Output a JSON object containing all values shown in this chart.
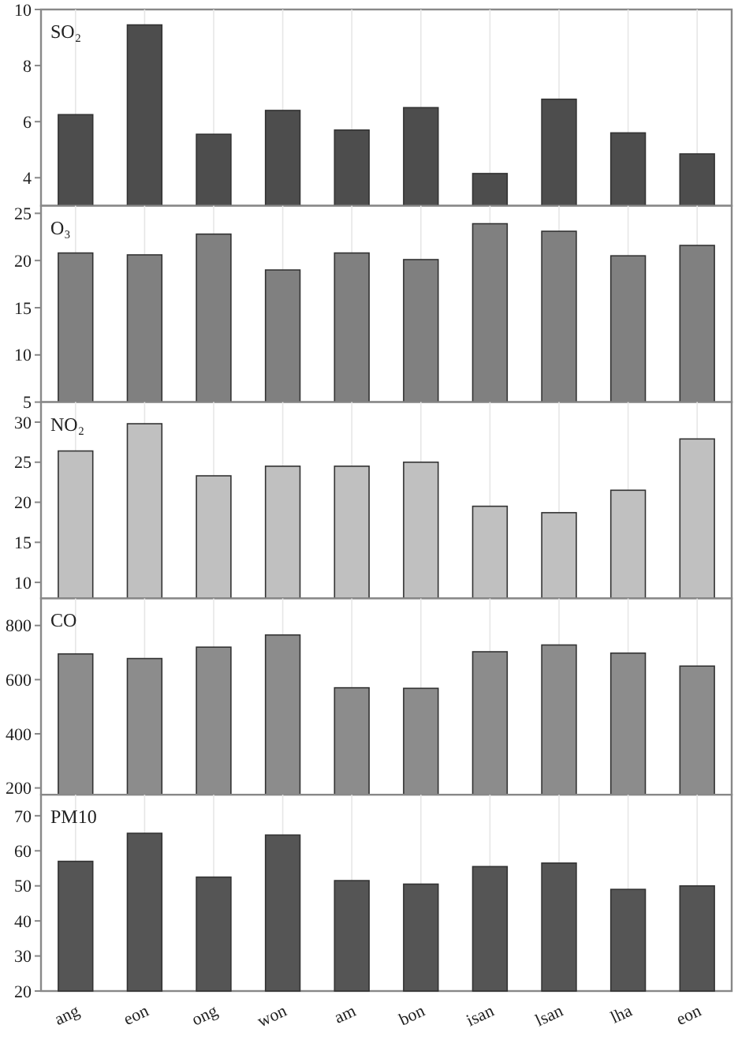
{
  "chart_data": [
    {
      "type": "bar",
      "title": "SO₂",
      "categories": [
        null,
        null,
        null,
        null,
        null,
        null,
        null,
        null,
        null,
        null
      ],
      "tick_labels": "y",
      "grid": "x",
      "ylim": [
        3,
        10
      ],
      "yticks": [
        4,
        6,
        8,
        10
      ],
      "series": [
        {
          "color": "#4d4d4d",
          "values": [
            6.25,
            9.45,
            5.55,
            6.4,
            5.7,
            6.5,
            4.15,
            6.8,
            5.6,
            4.85
          ]
        }
      ]
    },
    {
      "type": "bar",
      "title": "O₃",
      "categories": [
        null,
        null,
        null,
        null,
        null,
        null,
        null,
        null,
        null,
        null
      ],
      "tick_labels": "y",
      "grid": "x",
      "ylim": [
        5,
        25.8
      ],
      "yticks": [
        5,
        10,
        15,
        20,
        25
      ],
      "series": [
        {
          "color": "#808080",
          "values": [
            20.8,
            20.6,
            22.8,
            19,
            20.8,
            20.1,
            23.9,
            23.1,
            20.5,
            21.6
          ]
        }
      ]
    },
    {
      "type": "bar",
      "title": "NO₂",
      "categories": [
        null,
        null,
        null,
        null,
        null,
        null,
        null,
        null,
        null,
        null
      ],
      "tick_labels": "y",
      "grid": "x",
      "ylim": [
        8,
        32.5
      ],
      "yticks": [
        10,
        15,
        20,
        25,
        30
      ],
      "series": [
        {
          "color": "#c0c0c0",
          "values": [
            26.4,
            29.8,
            23.3,
            24.5,
            24.5,
            25,
            19.5,
            18.7,
            21.5,
            27.9
          ]
        }
      ]
    },
    {
      "type": "bar",
      "title": "CO",
      "categories": [
        null,
        null,
        null,
        null,
        null,
        null,
        null,
        null,
        null,
        null
      ],
      "tick_labels": "y",
      "grid": "x",
      "ylim": [
        175,
        900
      ],
      "yticks": [
        200,
        400,
        600,
        800
      ],
      "series": [
        {
          "color": "#8c8c8c",
          "values": [
            695,
            678,
            720,
            765,
            570,
            568,
            703,
            728,
            698,
            650
          ]
        }
      ]
    },
    {
      "type": "bar",
      "title": "PM10",
      "categories": [
        "ang",
        "eon",
        "ong",
        "won",
        "am",
        "bon",
        "isan",
        "lsan",
        "lha",
        "eon"
      ],
      "grid": "x",
      "ylim": [
        20,
        76
      ],
      "yticks": [
        20,
        30,
        40,
        50,
        60,
        70
      ],
      "series": [
        {
          "color": "#555555",
          "values": [
            57,
            65,
            52.5,
            64.5,
            51.5,
            50.5,
            55.5,
            56.5,
            49,
            50
          ]
        }
      ]
    }
  ]
}
